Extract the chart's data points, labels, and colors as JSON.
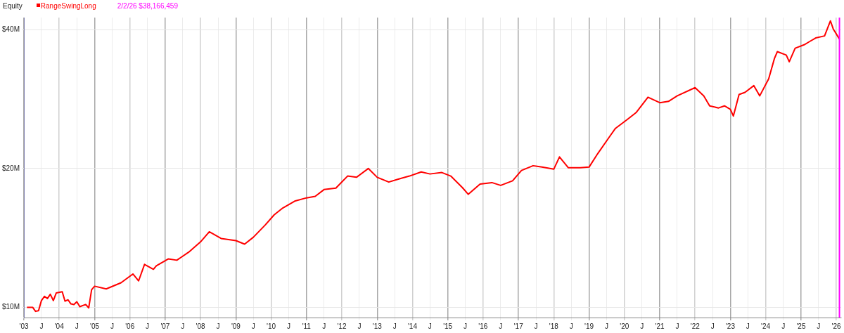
{
  "chart_data": {
    "type": "line",
    "title": "Equity",
    "log": "y",
    "grid": true,
    "legend": "top left",
    "xlim": [
      "2003-01-01",
      "2026-02-20"
    ],
    "ylim": [
      9.5,
      42.5
    ],
    "yticks": [
      {
        "value": 10,
        "label": "$10M"
      },
      {
        "value": 20,
        "label": "$20M"
      },
      {
        "value": 40,
        "label": "$40M"
      }
    ],
    "xticks": [
      {
        "value": "2003-01-01",
        "label": "'03"
      },
      {
        "value": "2003-07-01",
        "label": "J"
      },
      {
        "value": "2004-01-01",
        "label": "'04"
      },
      {
        "value": "2004-07-01",
        "label": "J"
      },
      {
        "value": "2005-01-01",
        "label": "'05"
      },
      {
        "value": "2005-07-01",
        "label": "J"
      },
      {
        "value": "2006-01-01",
        "label": "'06"
      },
      {
        "value": "2006-07-01",
        "label": "J"
      },
      {
        "value": "2007-01-01",
        "label": "'07"
      },
      {
        "value": "2007-07-01",
        "label": "J"
      },
      {
        "value": "2008-01-01",
        "label": "'08"
      },
      {
        "value": "2008-07-01",
        "label": "J"
      },
      {
        "value": "2009-01-01",
        "label": "'09"
      },
      {
        "value": "2009-07-01",
        "label": "J"
      },
      {
        "value": "2010-01-01",
        "label": "'10"
      },
      {
        "value": "2010-07-01",
        "label": "J"
      },
      {
        "value": "2011-01-01",
        "label": "'11"
      },
      {
        "value": "2011-07-01",
        "label": "J"
      },
      {
        "value": "2012-01-01",
        "label": "'12"
      },
      {
        "value": "2012-07-01",
        "label": "J"
      },
      {
        "value": "2013-01-01",
        "label": "'13"
      },
      {
        "value": "2013-07-01",
        "label": "J"
      },
      {
        "value": "2014-01-01",
        "label": "'14"
      },
      {
        "value": "2014-07-01",
        "label": "J"
      },
      {
        "value": "2015-01-01",
        "label": "'15"
      },
      {
        "value": "2015-07-01",
        "label": "J"
      },
      {
        "value": "2016-01-01",
        "label": "'16"
      },
      {
        "value": "2016-07-01",
        "label": "J"
      },
      {
        "value": "2017-01-01",
        "label": "'17"
      },
      {
        "value": "2017-07-01",
        "label": "J"
      },
      {
        "value": "2018-01-01",
        "label": "'18"
      },
      {
        "value": "2018-07-01",
        "label": "J"
      },
      {
        "value": "2019-01-01",
        "label": "'19"
      },
      {
        "value": "2019-07-01",
        "label": "J"
      },
      {
        "value": "2020-01-01",
        "label": "'20"
      },
      {
        "value": "2020-07-01",
        "label": "J"
      },
      {
        "value": "2021-01-01",
        "label": "'21"
      },
      {
        "value": "2021-07-01",
        "label": "J"
      },
      {
        "value": "2022-01-01",
        "label": "'22"
      },
      {
        "value": "2022-07-01",
        "label": "J"
      },
      {
        "value": "2023-01-01",
        "label": "'23"
      },
      {
        "value": "2023-07-01",
        "label": "J"
      },
      {
        "value": "2024-01-01",
        "label": "'24"
      },
      {
        "value": "2024-07-01",
        "label": "J"
      },
      {
        "value": "2025-01-01",
        "label": "'25"
      },
      {
        "value": "2025-07-01",
        "label": "J"
      },
      {
        "value": "2026-01-01",
        "label": "'26"
      }
    ],
    "ref_lines": [
      {
        "axis": "x",
        "value": "2026-02-02",
        "label": "2/2/26 $38,166,459",
        "color": "#ff00ff"
      }
    ],
    "x": [
      "2003-02",
      "2003-04",
      "2003-05",
      "2003-06",
      "2003-07",
      "2003-08",
      "2003-09",
      "2003-10",
      "2003-11",
      "2003-12",
      "2004-02",
      "2004-03",
      "2004-04",
      "2004-05",
      "2004-06",
      "2004-07",
      "2004-08",
      "2004-10",
      "2004-11",
      "2004-12",
      "2005-01",
      "2005-05",
      "2005-10",
      "2006-02",
      "2006-04",
      "2006-06",
      "2006-09",
      "2006-10",
      "2007-02",
      "2007-05",
      "2007-09",
      "2008-01",
      "2008-04",
      "2008-08",
      "2009-01",
      "2009-04",
      "2009-07",
      "2009-11",
      "2010-02",
      "2010-05",
      "2010-09",
      "2011-01",
      "2011-04",
      "2011-07",
      "2011-11",
      "2012-03",
      "2012-06",
      "2012-10",
      "2013-01",
      "2013-05",
      "2013-08",
      "2013-12",
      "2014-04",
      "2014-07",
      "2014-11",
      "2015-02",
      "2015-06",
      "2015-08",
      "2015-12",
      "2016-04",
      "2016-07",
      "2016-11",
      "2017-02",
      "2017-06",
      "2017-09",
      "2018-01",
      "2018-03",
      "2018-06",
      "2018-10",
      "2019-01",
      "2019-04",
      "2019-08",
      "2019-10",
      "2020-02",
      "2020-05",
      "2020-09",
      "2021-01",
      "2021-04",
      "2021-07",
      "2022-01",
      "2022-04",
      "2022-06",
      "2022-09",
      "2022-11",
      "2023-01",
      "2023-02",
      "2023-04",
      "2023-06",
      "2023-09",
      "2023-11",
      "2024-02",
      "2024-04",
      "2024-05",
      "2024-08",
      "2024-09",
      "2024-11",
      "2025-02",
      "2025-04",
      "2025-06",
      "2025-09",
      "2025-11",
      "2025-12",
      "2026-02-02"
    ],
    "series": [
      {
        "name": "RangeSwingLong",
        "color": "#ff0000",
        "values": [
          10.0,
          10.0,
          9.8,
          9.83,
          10.34,
          10.56,
          10.45,
          10.67,
          10.34,
          10.74,
          10.81,
          10.31,
          10.38,
          10.17,
          10.14,
          10.28,
          10.03,
          10.14,
          9.97,
          10.92,
          11.11,
          10.96,
          11.3,
          11.81,
          11.41,
          12.39,
          12.09,
          12.3,
          12.73,
          12.65,
          13.17,
          13.86,
          14.58,
          14.1,
          13.95,
          13.71,
          14.19,
          15.09,
          15.87,
          16.42,
          16.99,
          17.27,
          17.4,
          18.0,
          18.13,
          19.26,
          19.14,
          20.0,
          19.14,
          18.69,
          18.95,
          19.26,
          19.66,
          19.46,
          19.6,
          19.26,
          18.18,
          17.58,
          18.51,
          18.64,
          18.38,
          18.81,
          19.8,
          20.28,
          20.14,
          19.93,
          21.19,
          20.07,
          20.07,
          20.14,
          21.55,
          23.45,
          24.44,
          25.55,
          26.44,
          28.56,
          27.78,
          27.96,
          28.75,
          29.95,
          28.75,
          27.34,
          27.06,
          27.34,
          26.88,
          25.99,
          28.94,
          29.25,
          30.25,
          28.75,
          31.3,
          34.66,
          35.85,
          35.24,
          34.08,
          36.46,
          37.09,
          37.72,
          38.38,
          38.78,
          41.8,
          40.1,
          38.17
        ]
      }
    ]
  }
}
